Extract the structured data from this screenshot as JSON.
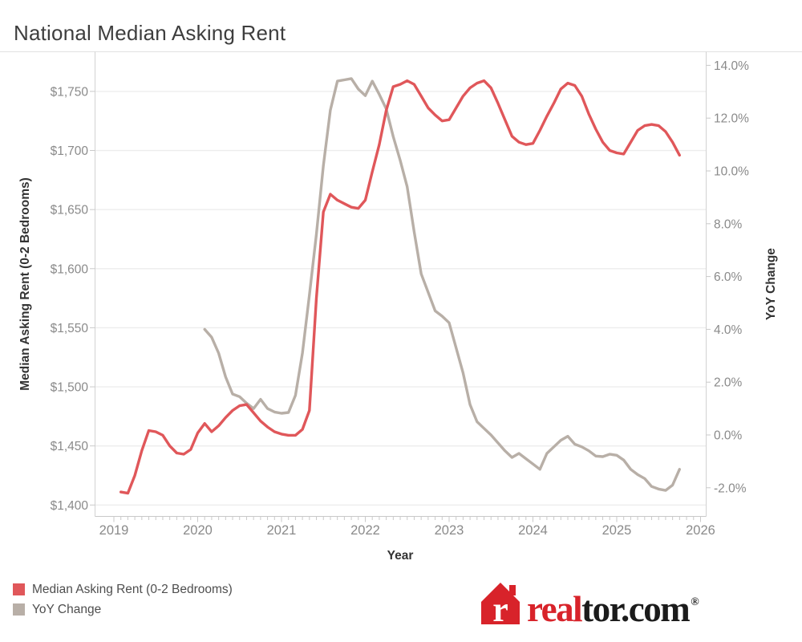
{
  "title": "National Median Asking Rent",
  "chart_data": {
    "type": "line",
    "title": "National Median Asking Rent",
    "grid": true,
    "legend_position": "bottom-left",
    "x_axis": {
      "label": "Year",
      "tick_labels": [
        "2019",
        "2020",
        "2021",
        "2022",
        "2023",
        "2024",
        "2025",
        "2026"
      ],
      "minor_tick_unit": "month"
    },
    "left_axis": {
      "label": "Median Asking Rent (0-2 Bedrooms)",
      "tick_values": [
        1400,
        1450,
        1500,
        1550,
        1600,
        1650,
        1700,
        1750
      ],
      "tick_labels": [
        "$1,400",
        "$1,450",
        "$1,500",
        "$1,550",
        "$1,600",
        "$1,650",
        "$1,700",
        "$1,750"
      ],
      "range": [
        1400,
        1750
      ]
    },
    "right_axis": {
      "label": "YoY Change",
      "tick_values": [
        -2,
        0,
        2,
        4,
        6,
        8,
        10,
        12,
        14
      ],
      "tick_labels": [
        "-2.0%",
        "0.0%",
        "2.0%",
        "4.0%",
        "6.0%",
        "8.0%",
        "10.0%",
        "12.0%",
        "14.0%"
      ],
      "range": [
        -2,
        14
      ]
    },
    "series": [
      {
        "name": "Median Asking Rent (0-2 Bedrooms)",
        "axis": "left",
        "unit": "USD",
        "color": "#e0575a",
        "frequency": "monthly",
        "start": "2019-02",
        "end": "2025-10",
        "values": [
          1411,
          1410,
          1425,
          1446,
          1463,
          1462,
          1459,
          1450,
          1444,
          1443,
          1447,
          1461,
          1469,
          1462,
          1467,
          1474,
          1480,
          1484,
          1485,
          1478,
          1471,
          1466,
          1462,
          1460,
          1459,
          1459,
          1464,
          1480,
          1575,
          1648,
          1663,
          1658,
          1655,
          1652,
          1651,
          1658,
          1682,
          1705,
          1734,
          1754,
          1756,
          1759,
          1756,
          1746,
          1736,
          1730,
          1725,
          1726,
          1736,
          1746,
          1753,
          1757,
          1759,
          1753,
          1740,
          1726,
          1712,
          1707,
          1705,
          1706,
          1717,
          1729,
          1740,
          1752,
          1757,
          1755,
          1746,
          1731,
          1718,
          1707,
          1700,
          1698,
          1697,
          1707,
          1717,
          1721,
          1722,
          1721,
          1716,
          1707,
          1696
        ]
      },
      {
        "name": "YoY Change",
        "axis": "right",
        "unit": "percent",
        "color": "#b8afa7",
        "frequency": "monthly",
        "start": "2020-02",
        "end": "2025-10",
        "values": [
          4.0,
          3.7,
          3.1,
          2.2,
          1.55,
          1.45,
          1.2,
          1.0,
          1.35,
          1.0,
          0.87,
          0.82,
          0.85,
          1.5,
          3.1,
          5.3,
          7.6,
          10.2,
          12.3,
          13.4,
          13.45,
          13.5,
          13.1,
          12.85,
          13.4,
          12.9,
          12.35,
          11.3,
          10.4,
          9.4,
          7.7,
          6.1,
          5.4,
          4.7,
          4.5,
          4.25,
          3.3,
          2.35,
          1.15,
          0.5,
          0.25,
          0.0,
          -0.3,
          -0.6,
          -0.85,
          -0.7,
          -0.9,
          -1.1,
          -1.3,
          -0.7,
          -0.45,
          -0.2,
          -0.05,
          -0.35,
          -0.45,
          -0.6,
          -0.8,
          -0.82,
          -0.73,
          -0.77,
          -0.95,
          -1.3,
          -1.5,
          -1.65,
          -1.95,
          -2.05,
          -2.1,
          -1.9,
          -1.3
        ]
      }
    ]
  },
  "legend": {
    "items": [
      {
        "label": "Median Asking Rent (0-2 Bedrooms)",
        "color": "#e0575a"
      },
      {
        "label": "YoY Change",
        "color": "#b8afa7"
      }
    ]
  },
  "branding": {
    "house_letter": "r",
    "wordmark_red": "real",
    "wordmark_dark": "tor.com",
    "registered": "®"
  },
  "colors": {
    "series_red": "#e0575a",
    "series_gray": "#b8afa7",
    "logo_red": "#d8232a",
    "tick_text": "#8a8a8a",
    "axis_title_text": "#333333",
    "gridline": "#ededed",
    "panel_border": "#d2d2d2",
    "axis_line": "#c9c9c9",
    "title_text": "#3e3e3e"
  }
}
